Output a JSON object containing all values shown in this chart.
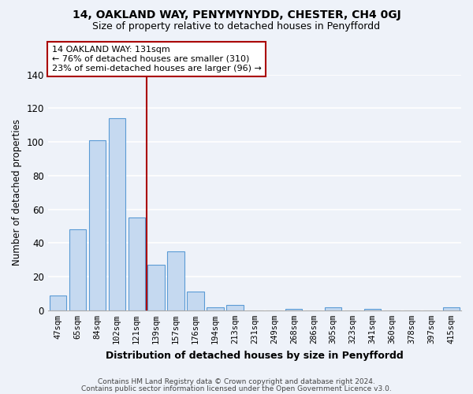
{
  "title": "14, OAKLAND WAY, PENYMYNYDD, CHESTER, CH4 0GJ",
  "subtitle": "Size of property relative to detached houses in Penyffordd",
  "xlabel": "Distribution of detached houses by size in Penyffordd",
  "ylabel": "Number of detached properties",
  "bar_labels": [
    "47sqm",
    "65sqm",
    "84sqm",
    "102sqm",
    "121sqm",
    "139sqm",
    "157sqm",
    "176sqm",
    "194sqm",
    "213sqm",
    "231sqm",
    "249sqm",
    "268sqm",
    "286sqm",
    "305sqm",
    "323sqm",
    "341sqm",
    "360sqm",
    "378sqm",
    "397sqm",
    "415sqm"
  ],
  "bar_values": [
    9,
    48,
    101,
    114,
    55,
    27,
    35,
    11,
    2,
    3,
    0,
    0,
    1,
    0,
    2,
    0,
    1,
    0,
    0,
    0,
    2
  ],
  "bar_color": "#c5d9f0",
  "bar_edge_color": "#5b9bd5",
  "vline_x": 4.5,
  "vline_color": "#aa0000",
  "annotation_title": "14 OAKLAND WAY: 131sqm",
  "annotation_line1": "← 76% of detached houses are smaller (310)",
  "annotation_line2": "23% of semi-detached houses are larger (96) →",
  "annotation_box_color": "#ffffff",
  "annotation_box_edge": "#aa0000",
  "ylim": [
    0,
    140
  ],
  "yticks": [
    0,
    20,
    40,
    60,
    80,
    100,
    120,
    140
  ],
  "footer1": "Contains HM Land Registry data © Crown copyright and database right 2024.",
  "footer2": "Contains public sector information licensed under the Open Government Licence v3.0.",
  "bg_color": "#eef2f9",
  "title_fontsize": 10,
  "subtitle_fontsize": 9
}
